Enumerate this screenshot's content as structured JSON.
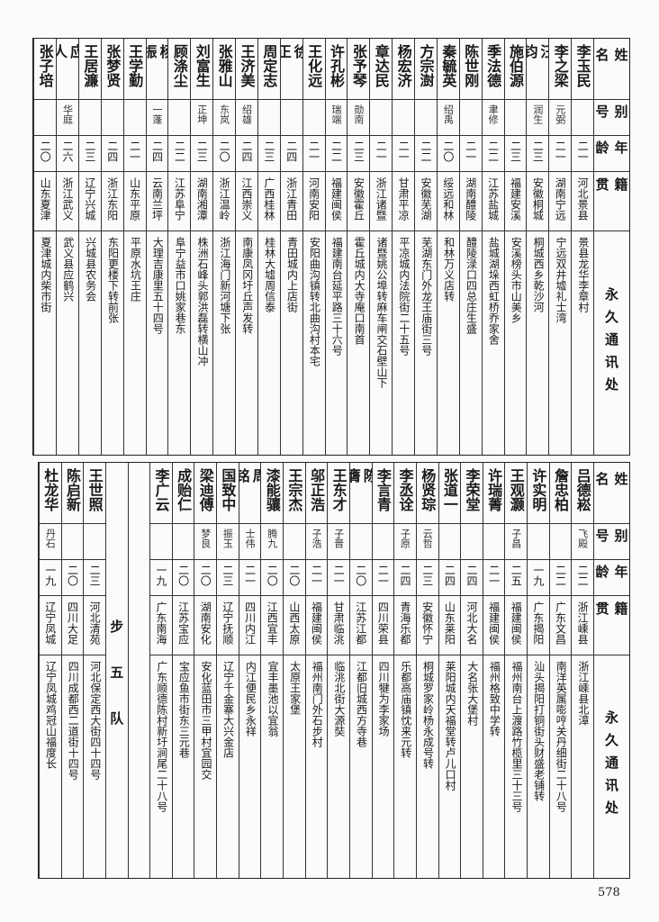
{
  "headers": {
    "name": "姓名",
    "alias": "别号",
    "age": "年龄",
    "native_place": "籍贯",
    "address": "永久通讯处"
  },
  "top_table": [
    {
      "name": "李玉民",
      "alias": "",
      "age": "二一",
      "native": "河北景县",
      "address": "景县龙华李章村"
    },
    {
      "name": "李之梁",
      "alias": "元弼",
      "age": "二一",
      "native": "湖南宁远",
      "address": "宁远双井墟礼士湾"
    },
    {
      "name": "汪钧",
      "alias": "润生",
      "age": "二三",
      "native": "安徽桐城",
      "address": "桐城西乡乾沙河"
    },
    {
      "name": "施伯源",
      "alias": "",
      "age": "二三",
      "native": "福建安溪",
      "address": "安溪榜头市山美乡"
    },
    {
      "name": "季法德",
      "alias": "聿修",
      "age": "二二",
      "native": "江苏盐城",
      "address": "盐城湖垛西虹桥乔家舍"
    },
    {
      "name": "陈世刚",
      "alias": "",
      "age": "二一",
      "native": "湖南醴陵",
      "address": "醴陵渌口四总庄生盛"
    },
    {
      "name": "秦毓英",
      "alias": "绍禹",
      "age": "二〇",
      "native": "绥远和林",
      "address": "和林万义店转"
    },
    {
      "name": "方宗澍",
      "alias": "",
      "age": "二二",
      "native": "安徽芜湖",
      "address": "芜湖东门外龙王庙街三号"
    },
    {
      "name": "杨宏济",
      "alias": "",
      "age": "二一",
      "native": "甘肃平凉",
      "address": "平凉城内法院街二十五号"
    },
    {
      "name": "章达民",
      "alias": "",
      "age": "二一",
      "native": "浙江诸暨",
      "address": "诸暨姚公埠转麻车闸交石壁山下"
    },
    {
      "name": "张予琴",
      "alias": "勋南",
      "age": "二三",
      "native": "安徽霍丘",
      "address": "霍丘城内大寺庵口南首"
    },
    {
      "name": "许孔彬",
      "alias": "瑞端",
      "age": "二二",
      "native": "福建闽侯",
      "address": "福建南台延平路三十六号"
    },
    {
      "name": "王化远",
      "alias": "",
      "age": "二一",
      "native": "河南安阳",
      "address": "安阳曲沟镇转北曲沟村本宅"
    },
    {
      "name": "徐正",
      "alias": "",
      "age": "二四",
      "native": "浙江青田",
      "address": "青田城内上店街"
    },
    {
      "name": "周定志",
      "alias": "",
      "age": "二三",
      "native": "广西桂林",
      "address": "桂林大墟周信泰"
    },
    {
      "name": "王济美",
      "alias": "绍雄",
      "age": "二四",
      "native": "江西崇义",
      "address": "南康凤冈圩丘声发转"
    },
    {
      "name": "张雅山",
      "alias": "东岚",
      "age": "二〇",
      "native": "浙江温岭",
      "address": "浙江海门新河塘下张"
    },
    {
      "name": "刘富生",
      "alias": "正坤",
      "age": "二三",
      "native": "湖南湘潭",
      "address": "株洲石峰头郭洪磊转横山冲"
    },
    {
      "name": "顾涤尘",
      "alias": "",
      "age": "二二",
      "native": "江苏阜宁",
      "address": "阜宁益市口姚家巷东"
    },
    {
      "name": "杨振",
      "alias": "一蓬",
      "age": "二四",
      "native": "云南兰坪",
      "address": "大理吉康里五十四号"
    },
    {
      "name": "王学勤",
      "alias": "",
      "age": "二一",
      "native": "山东平原",
      "address": "平原水坑王庄"
    },
    {
      "name": "张梦贤",
      "alias": "",
      "age": "二四",
      "native": "浙江东阳",
      "address": "东阳更楼下转前张"
    },
    {
      "name": "王居濂",
      "alias": "",
      "age": "二三",
      "native": "辽宁兴城",
      "address": "兴城县农务会"
    },
    {
      "name": "应人",
      "alias": "华庭",
      "age": "二六",
      "native": "浙江武义",
      "address": "武义县应鹤兴"
    },
    {
      "name": "张子培",
      "alias": "",
      "age": "二〇",
      "native": "山东夏津",
      "address": "夏津城内柴市街"
    }
  ],
  "bottom_table": [
    {
      "name": "吕德崧",
      "alias": "飞殿",
      "age": "二二",
      "native": "浙江嵊县",
      "address": "浙江嵊县北漳"
    },
    {
      "name": "詹忠柏",
      "alias": "",
      "age": "二二",
      "native": "广东文昌",
      "address": "南洋英属嘭哼关丹细街二十八号"
    },
    {
      "name": "许实明",
      "alias": "",
      "age": "一九",
      "native": "广东揭阳",
      "address": "汕头揭阳打铜街头财盛老铺转"
    },
    {
      "name": "王观灏",
      "alias": "子昌",
      "age": "二五",
      "native": "福建闽侯",
      "address": "福州南台上渡路竹榄里三十三号"
    },
    {
      "name": "许瑞菁",
      "alias": "",
      "age": "二一",
      "native": "福建闽侯",
      "address": "福州格致中学转"
    },
    {
      "name": "李荣堂",
      "alias": "",
      "age": "二四",
      "native": "河北大名",
      "address": "大名张大堡村"
    },
    {
      "name": "张道一",
      "alias": "",
      "age": "二四",
      "native": "山东莱阳",
      "address": "莱阳城内天福堂转卢儿口村"
    },
    {
      "name": "杨贤琮",
      "alias": "云哲",
      "age": "二三",
      "native": "安徽怀宁",
      "address": "桐城罗家岭杨永成号转"
    },
    {
      "name": "李丞诠",
      "alias": "子原",
      "age": "二四",
      "native": "青海乐都",
      "address": "乐都高庙镇忱来元转"
    },
    {
      "name": "李言青",
      "alias": "",
      "age": "二一",
      "native": "四川荣县",
      "address": "四川犍为李家场"
    },
    {
      "name": "陈膺",
      "alias": "",
      "age": "二〇",
      "native": "江苏江都",
      "address": "江都旧城西方寺巷"
    },
    {
      "name": "王东才",
      "alias": "子晋",
      "age": "二一",
      "native": "甘肃临洮",
      "address": "临洮北街大源奘"
    },
    {
      "name": "邬正浩",
      "alias": "子浩",
      "age": "二一",
      "native": "福建闽侯",
      "address": "福州南门外石步村"
    },
    {
      "name": "王宗杰",
      "alias": "",
      "age": "二〇",
      "native": "山西太原",
      "address": "太原王家堡"
    },
    {
      "name": "漆能骧",
      "alias": "腾九",
      "age": "二〇",
      "native": "江西宜丰",
      "address": "宜丰墨池以宜翁"
    },
    {
      "name": "周铭",
      "alias": "士伟",
      "age": "二一",
      "native": "四川内江",
      "address": "内江便民乡永祥"
    },
    {
      "name": "国致中",
      "alias": "振玉",
      "age": "二三",
      "native": "辽宁抚顺",
      "address": "辽宁千金寨大兴金店"
    },
    {
      "name": "梁迪傅",
      "alias": "梦良",
      "age": "二〇",
      "native": "湖南安化",
      "address": "安化蓝田市三甲村宜园交"
    },
    {
      "name": "成贻仁",
      "alias": "",
      "age": "二〇",
      "native": "江苏宝应",
      "address": "宝应鱼市街东三元巷"
    },
    {
      "name": "李广云",
      "alias": "",
      "age": "一九",
      "native": "广东南海",
      "address": "广东顺德陈村新圩涧尾二十八号"
    },
    {
      "blank": true
    },
    {
      "section": "步五队"
    },
    {
      "name": "王世照",
      "alias": "",
      "age": "二三",
      "native": "河北清苑",
      "address": "河北保定西大街四十四号"
    },
    {
      "name": "陈启新",
      "alias": "",
      "age": "二〇",
      "native": "四川大足",
      "address": "四川成都西二道街十四号"
    },
    {
      "name": "杜龙华",
      "alias": "丹石",
      "age": "一九",
      "native": "辽宁凤城",
      "address": "辽宁凤城鸡冠山福度长"
    }
  ],
  "page_number": "578"
}
